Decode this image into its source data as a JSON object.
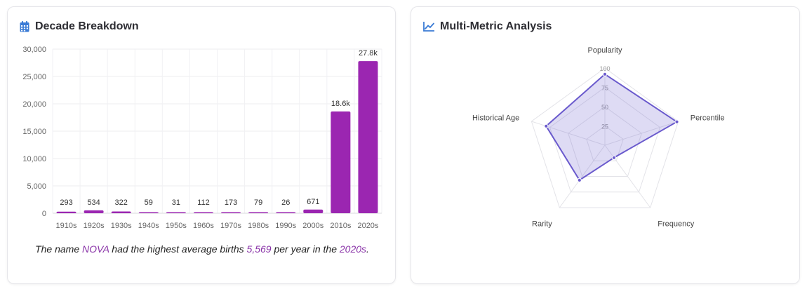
{
  "left_card": {
    "title": "Decade Breakdown",
    "title_icon": "calendar-icon",
    "caption": {
      "prefix": "The name ",
      "name": "NOVA",
      "mid1": " had the highest average births ",
      "value": "5,569",
      "mid2": " per year in the ",
      "decade": "2020s",
      "suffix": "."
    }
  },
  "right_card": {
    "title": "Multi-Metric Analysis",
    "title_icon": "line-chart-icon"
  },
  "colors": {
    "bar": "#9b26b1",
    "radar_line": "#6a5acd",
    "radar_fill": "rgba(106,90,205,0.22)",
    "accent": "#8a34a8",
    "icon": "#3a7bd5"
  },
  "chart_data": [
    {
      "type": "bar",
      "title": "Decade Breakdown",
      "categories": [
        "1910s",
        "1920s",
        "1930s",
        "1940s",
        "1950s",
        "1960s",
        "1970s",
        "1980s",
        "1990s",
        "2000s",
        "2010s",
        "2020s"
      ],
      "values": [
        293,
        534,
        322,
        59,
        31,
        112,
        173,
        79,
        26,
        671,
        18600,
        27800
      ],
      "data_labels": [
        "293",
        "534",
        "322",
        "59",
        "31",
        "112",
        "173",
        "79",
        "26",
        "671",
        "18.6k",
        "27.8k"
      ],
      "ylim": [
        0,
        30000
      ],
      "yticks": [
        0,
        5000,
        10000,
        15000,
        20000,
        25000,
        30000
      ],
      "ytick_labels": [
        "0",
        "5,000",
        "10,000",
        "15,000",
        "20,000",
        "25,000",
        "30,000"
      ],
      "grid": true,
      "xlabel": "",
      "ylabel": ""
    },
    {
      "type": "radar",
      "title": "Multi-Metric Analysis",
      "axes": [
        "Popularity",
        "Percentile",
        "Frequency",
        "Rarity",
        "Historical Age"
      ],
      "values": [
        92,
        98,
        20,
        56,
        80
      ],
      "range": [
        0,
        100
      ],
      "ticks": [
        25,
        50,
        75,
        100
      ],
      "tick_labels": [
        "25",
        "50",
        "75",
        "100"
      ]
    }
  ]
}
